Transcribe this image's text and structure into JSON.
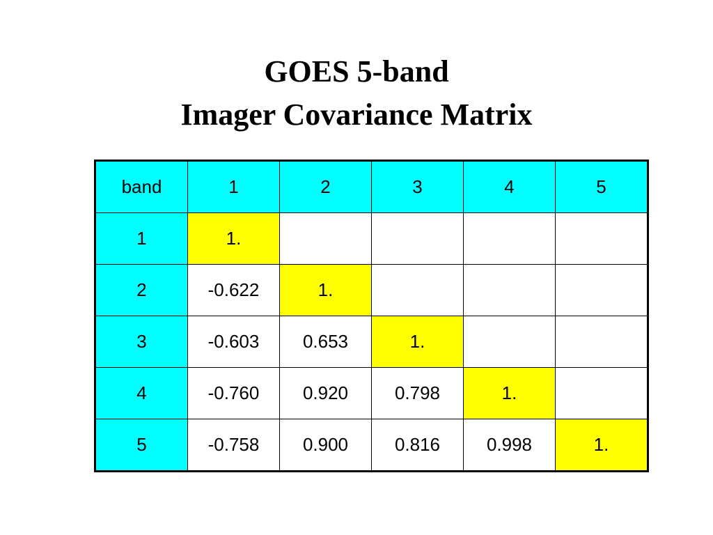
{
  "title": {
    "line1": "GOES 5-band",
    "line2": "Imager Covariance Matrix"
  },
  "table": {
    "header": [
      "band",
      "1",
      "2",
      "3",
      "4",
      "5"
    ],
    "rows": [
      [
        "1",
        "1."
      ],
      [
        "2",
        "-0.622",
        "1."
      ],
      [
        "3",
        "-0.603",
        "0.653",
        "1."
      ],
      [
        "4",
        "-0.760",
        "0.920",
        "0.798",
        "1."
      ],
      [
        "5",
        "-0.758",
        "0.900",
        "0.816",
        "0.998",
        "1."
      ]
    ]
  }
}
